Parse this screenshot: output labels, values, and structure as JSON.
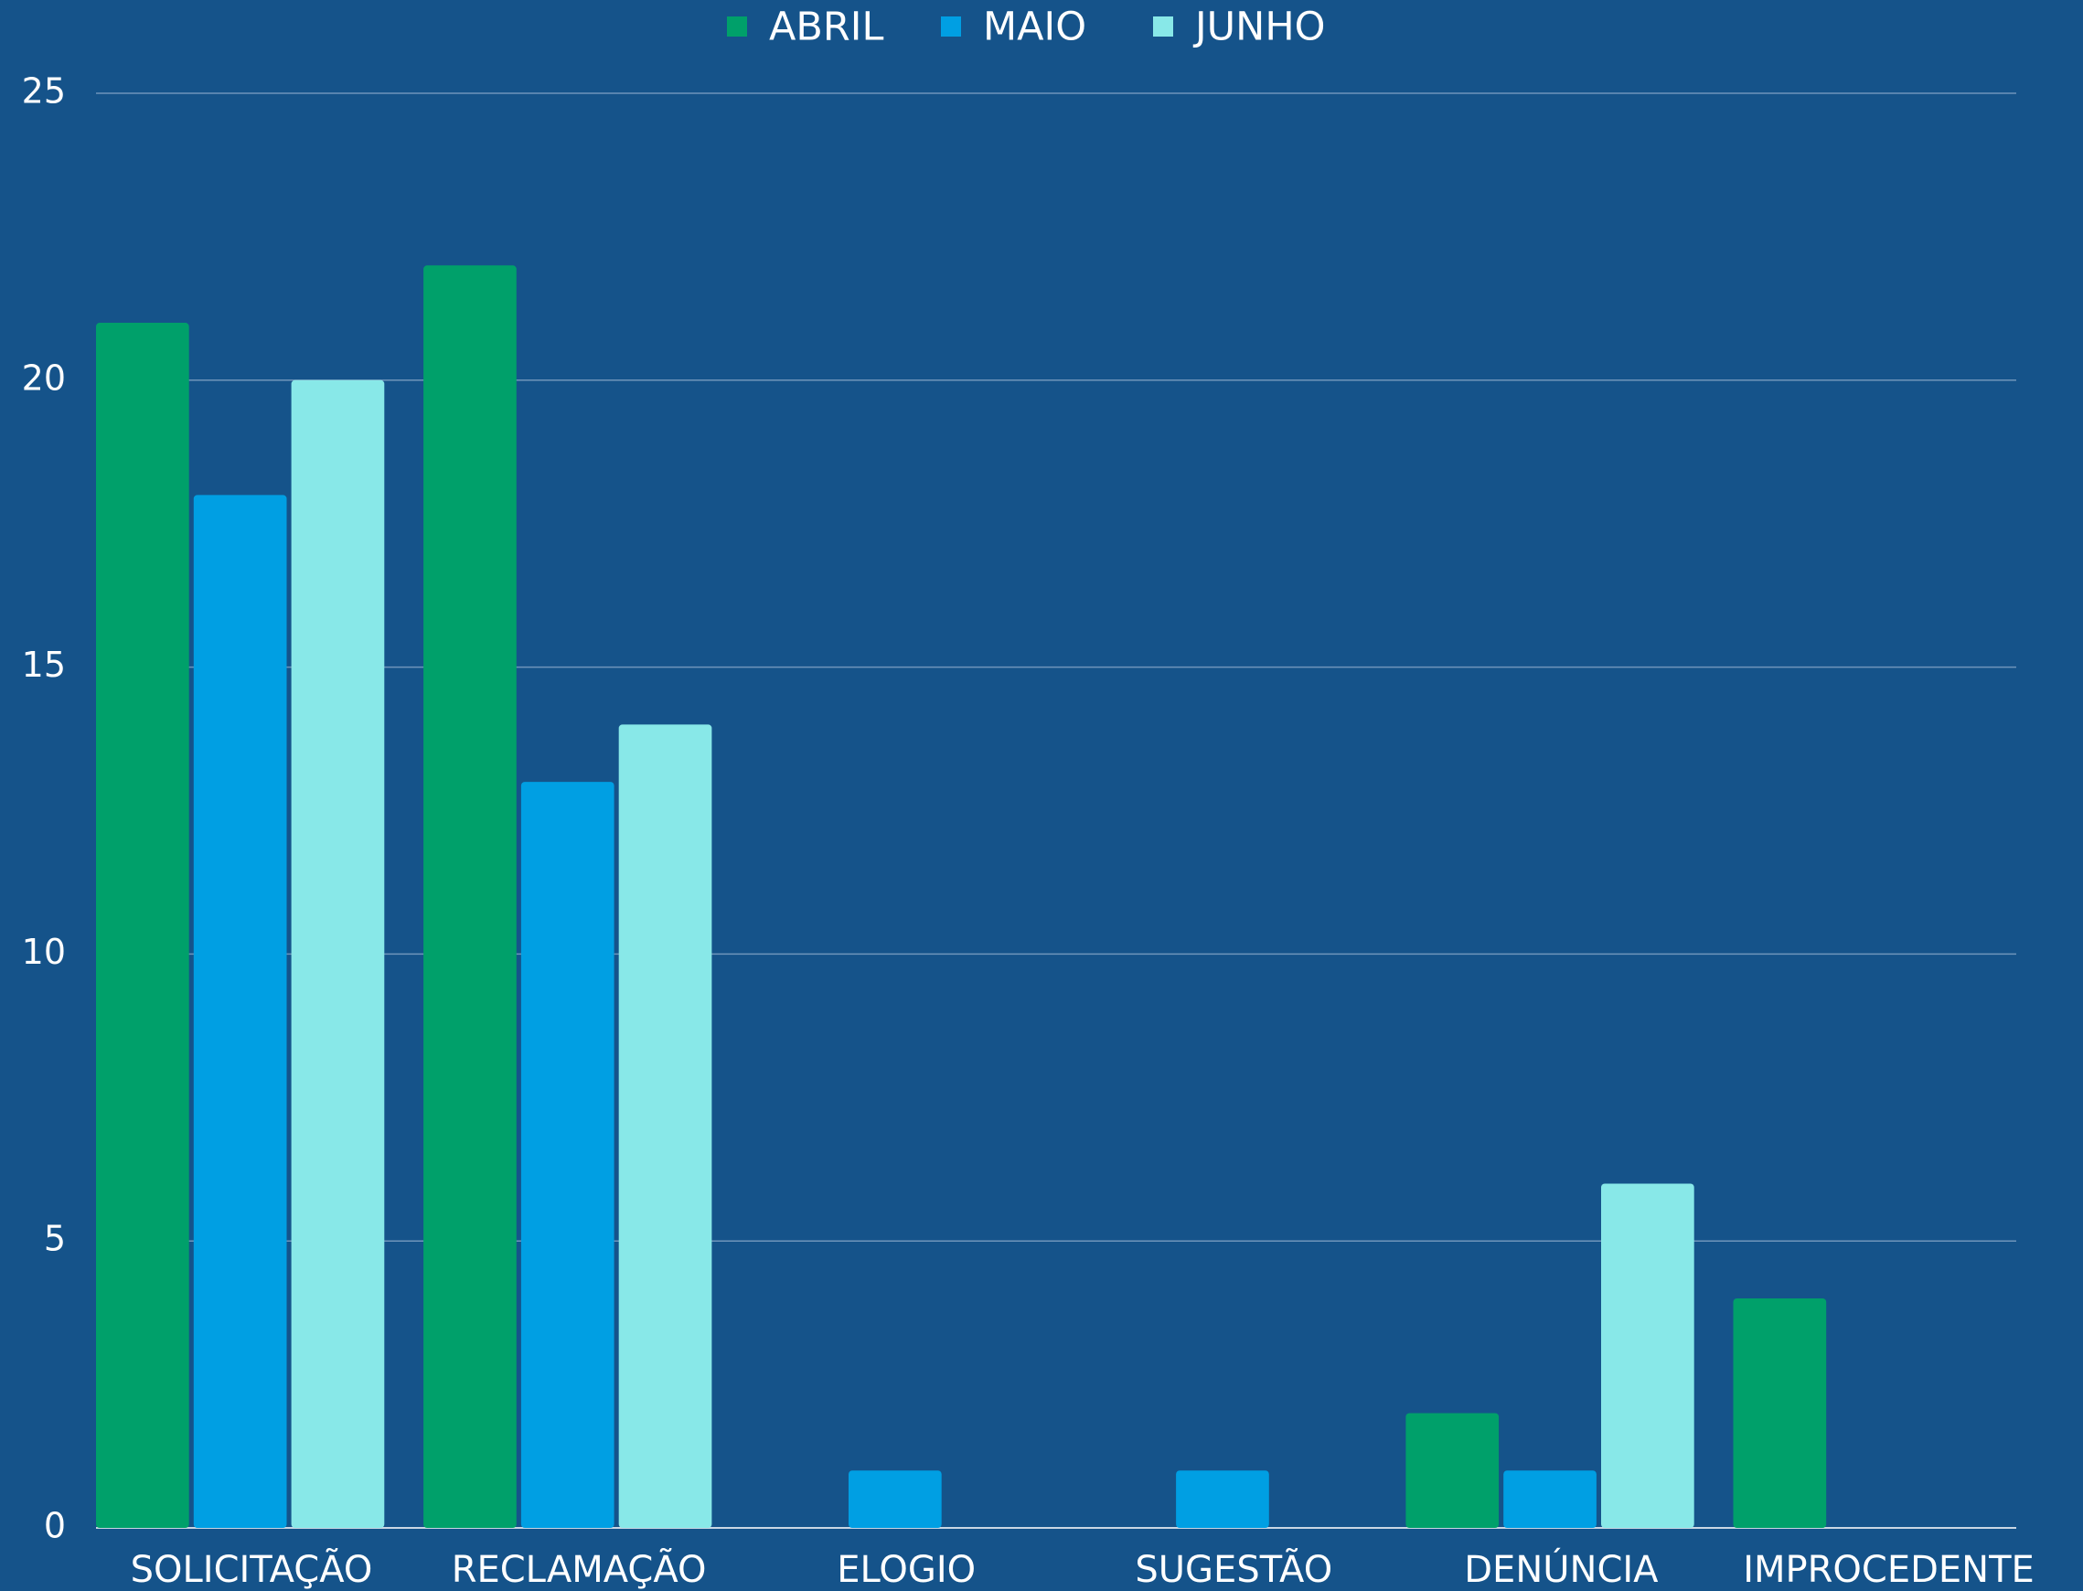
{
  "chart_data": {
    "type": "bar",
    "categories": [
      "SOLICITAÇÃO",
      "RECLAMAÇÃO",
      "ELOGIO",
      "SUGESTÃO",
      "DENÚNCIA",
      "IMPROCEDENTE"
    ],
    "series": [
      {
        "name": "ABRIL",
        "color": "#00a06a",
        "values": [
          21,
          22,
          0,
          0,
          2,
          4
        ]
      },
      {
        "name": "MAIO",
        "color": "#009fe3",
        "values": [
          18,
          13,
          1,
          1,
          1,
          0
        ]
      },
      {
        "name": "JUNHO",
        "color": "#88e8e8",
        "values": [
          20,
          14,
          0,
          0,
          6,
          0
        ]
      }
    ],
    "ylim": [
      0,
      25
    ],
    "yticks": [
      0,
      5,
      10,
      15,
      20,
      25
    ],
    "grid": true,
    "legend": "top"
  }
}
